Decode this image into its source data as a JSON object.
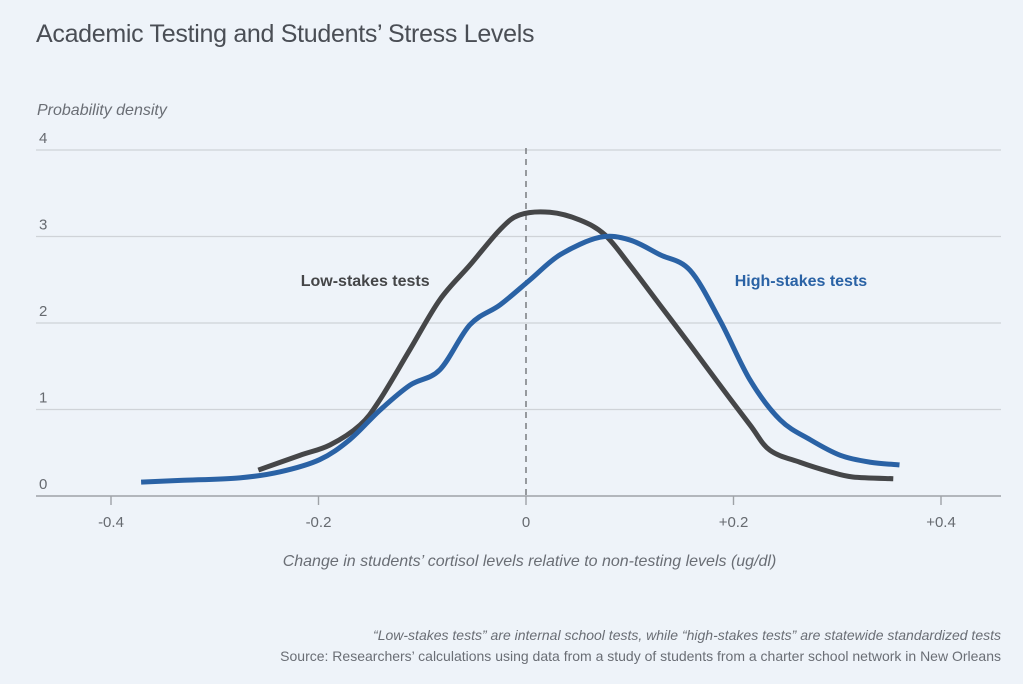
{
  "chart_data": {
    "type": "line",
    "title": "Academic Testing and Students’ Stress Levels",
    "ylabel": "Probability density",
    "xlabel": "Change in students’ cortisol levels relative to non-testing levels (ug/dl)",
    "xlim": [
      -0.46,
      0.46
    ],
    "ylim": [
      0,
      4
    ],
    "xticks": [
      -0.4,
      -0.2,
      0,
      0.2,
      0.4
    ],
    "xtick_labels": [
      "-0.4",
      "-0.2",
      "0",
      "+0.2",
      "+0.4"
    ],
    "yticks": [
      0,
      1,
      2,
      3,
      4
    ],
    "ytick_labels": [
      "0",
      "1",
      "2",
      "3",
      "4"
    ],
    "grid": true,
    "reference_line": {
      "x": 0,
      "style": "dashed"
    },
    "series": [
      {
        "name": "Low-stakes tests",
        "color": "#454648",
        "x": [
          -0.258,
          -0.218,
          -0.189,
          -0.16,
          -0.141,
          -0.112,
          -0.083,
          -0.054,
          -0.025,
          -0.006,
          0.023,
          0.052,
          0.076,
          0.1,
          0.129,
          0.158,
          0.187,
          0.216,
          0.235,
          0.264,
          0.293,
          0.315,
          0.354
        ],
        "y": [
          0.3,
          0.47,
          0.59,
          0.82,
          1.11,
          1.69,
          2.27,
          2.67,
          3.08,
          3.25,
          3.28,
          3.19,
          3.02,
          2.67,
          2.21,
          1.75,
          1.28,
          0.82,
          0.53,
          0.39,
          0.28,
          0.22,
          0.2
        ]
      },
      {
        "name": "High-stakes tests",
        "color": "#2a62a5",
        "x": [
          -0.371,
          -0.333,
          -0.276,
          -0.237,
          -0.199,
          -0.17,
          -0.141,
          -0.112,
          -0.083,
          -0.054,
          -0.025,
          0.004,
          0.033,
          0.071,
          0.1,
          0.129,
          0.158,
          0.187,
          0.216,
          0.245,
          0.274,
          0.303,
          0.332,
          0.36
        ],
        "y": [
          0.16,
          0.18,
          0.21,
          0.28,
          0.42,
          0.65,
          0.99,
          1.28,
          1.46,
          1.98,
          2.21,
          2.5,
          2.79,
          2.99,
          2.96,
          2.79,
          2.61,
          2.03,
          1.34,
          0.88,
          0.65,
          0.47,
          0.39,
          0.36
        ]
      }
    ],
    "annotations": [
      {
        "text": "Low-stakes tests",
        "series": "Low-stakes tests",
        "x": -0.155,
        "y": 2.5
      },
      {
        "text": "High-stakes tests",
        "series": "High-stakes tests",
        "x": 0.265,
        "y": 2.5
      }
    ]
  },
  "footnote": {
    "note": "“Low-stakes tests” are internal school tests, while “high-stakes tests” are statewide standardized tests",
    "source": "Source: Researchers’ calculations using data from a study of students from a charter school network in New Orleans"
  }
}
